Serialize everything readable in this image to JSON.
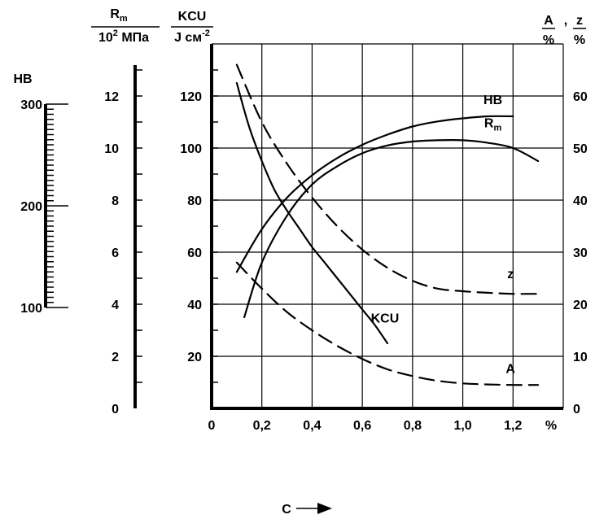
{
  "chart_data": {
    "type": "line",
    "x": {
      "label": "C",
      "unit_label": "%",
      "range": [
        0,
        1.4
      ],
      "tick_values": [
        0,
        0.2,
        0.4,
        0.6,
        0.8,
        1.0,
        1.2
      ],
      "tick_labels": [
        "0",
        "0,2",
        "0,4",
        "0,6",
        "0,8",
        "1,0",
        "1,2"
      ]
    },
    "axes": {
      "hb": {
        "label": "HB",
        "range": [
          100,
          300
        ],
        "tick_labels": [
          "100",
          "200",
          "300"
        ],
        "tick_values": [
          100,
          200,
          300
        ]
      },
      "rm": {
        "label_top": "R",
        "label_top_sub": "m",
        "label_bottom": "10",
        "label_bottom_sup": "2",
        "label_bottom_unit": " МПа",
        "range": [
          0,
          14
        ],
        "tick_labels": [
          "0",
          "2",
          "4",
          "6",
          "8",
          "10",
          "12"
        ],
        "tick_values": [
          0,
          2,
          4,
          6,
          8,
          10,
          12
        ]
      },
      "kcu": {
        "label_top": "KCU",
        "label_bottom": "J см",
        "label_bottom_sup": "-2",
        "range": [
          0,
          140
        ],
        "tick_labels": [
          "20",
          "40",
          "60",
          "80",
          "100",
          "120"
        ],
        "tick_values": [
          20,
          40,
          60,
          80,
          100,
          120
        ]
      },
      "az": {
        "label_a": "A",
        "label_sep": ",",
        "label_z": "z",
        "unit_a": "%",
        "unit_z": "%",
        "range": [
          0,
          70
        ],
        "tick_labels": [
          "0",
          "10",
          "20",
          "30",
          "40",
          "50",
          "60"
        ],
        "tick_values": [
          0,
          10,
          20,
          30,
          40,
          50,
          60
        ]
      }
    },
    "series": [
      {
        "name": "HB",
        "label_text": "HB",
        "style": "solid",
        "axis": "hb",
        "points": [
          [
            0.1,
            135
          ],
          [
            0.2,
            177
          ],
          [
            0.3,
            208
          ],
          [
            0.4,
            230
          ],
          [
            0.5,
            247
          ],
          [
            0.6,
            260
          ],
          [
            0.7,
            270
          ],
          [
            0.8,
            278
          ],
          [
            0.9,
            283
          ],
          [
            1.0,
            286
          ],
          [
            1.1,
            288
          ],
          [
            1.2,
            288
          ]
        ]
      },
      {
        "name": "Rm",
        "label_text": "R",
        "label_sub": "m",
        "style": "solid",
        "axis": "rm",
        "points": [
          [
            0.13,
            3.5
          ],
          [
            0.2,
            5.6
          ],
          [
            0.3,
            7.4
          ],
          [
            0.4,
            8.6
          ],
          [
            0.5,
            9.3
          ],
          [
            0.6,
            9.8
          ],
          [
            0.7,
            10.1
          ],
          [
            0.8,
            10.25
          ],
          [
            0.9,
            10.3
          ],
          [
            1.0,
            10.3
          ],
          [
            1.1,
            10.2
          ],
          [
            1.2,
            10.0
          ],
          [
            1.3,
            9.5
          ]
        ]
      },
      {
        "name": "KCU",
        "label_text": "KCU",
        "style": "solid",
        "axis": "kcu",
        "points": [
          [
            0.1,
            125
          ],
          [
            0.15,
            108
          ],
          [
            0.2,
            95
          ],
          [
            0.25,
            84
          ],
          [
            0.3,
            76
          ],
          [
            0.35,
            69
          ],
          [
            0.4,
            62
          ],
          [
            0.45,
            56
          ],
          [
            0.5,
            50
          ],
          [
            0.55,
            44
          ],
          [
            0.6,
            38
          ],
          [
            0.65,
            32
          ],
          [
            0.7,
            25
          ]
        ]
      },
      {
        "name": "z",
        "label_text": "z",
        "style": "dashed",
        "axis": "az",
        "points": [
          [
            0.1,
            66
          ],
          [
            0.2,
            55
          ],
          [
            0.3,
            47
          ],
          [
            0.4,
            40.5
          ],
          [
            0.5,
            35
          ],
          [
            0.6,
            30.5
          ],
          [
            0.7,
            27
          ],
          [
            0.8,
            24.5
          ],
          [
            0.9,
            23
          ],
          [
            1.0,
            22.5
          ],
          [
            1.1,
            22.2
          ],
          [
            1.2,
            22
          ],
          [
            1.3,
            22
          ]
        ]
      },
      {
        "name": "A",
        "label_text": "A",
        "style": "dashed",
        "axis": "az",
        "points": [
          [
            0.1,
            28
          ],
          [
            0.2,
            23
          ],
          [
            0.3,
            18.5
          ],
          [
            0.4,
            15
          ],
          [
            0.5,
            12
          ],
          [
            0.6,
            9.5
          ],
          [
            0.7,
            7.5
          ],
          [
            0.8,
            6.2
          ],
          [
            0.9,
            5.3
          ],
          [
            1.0,
            4.8
          ],
          [
            1.1,
            4.6
          ],
          [
            1.2,
            4.5
          ],
          [
            1.3,
            4.5
          ]
        ]
      }
    ],
    "grid": true,
    "xlabel": "C"
  }
}
